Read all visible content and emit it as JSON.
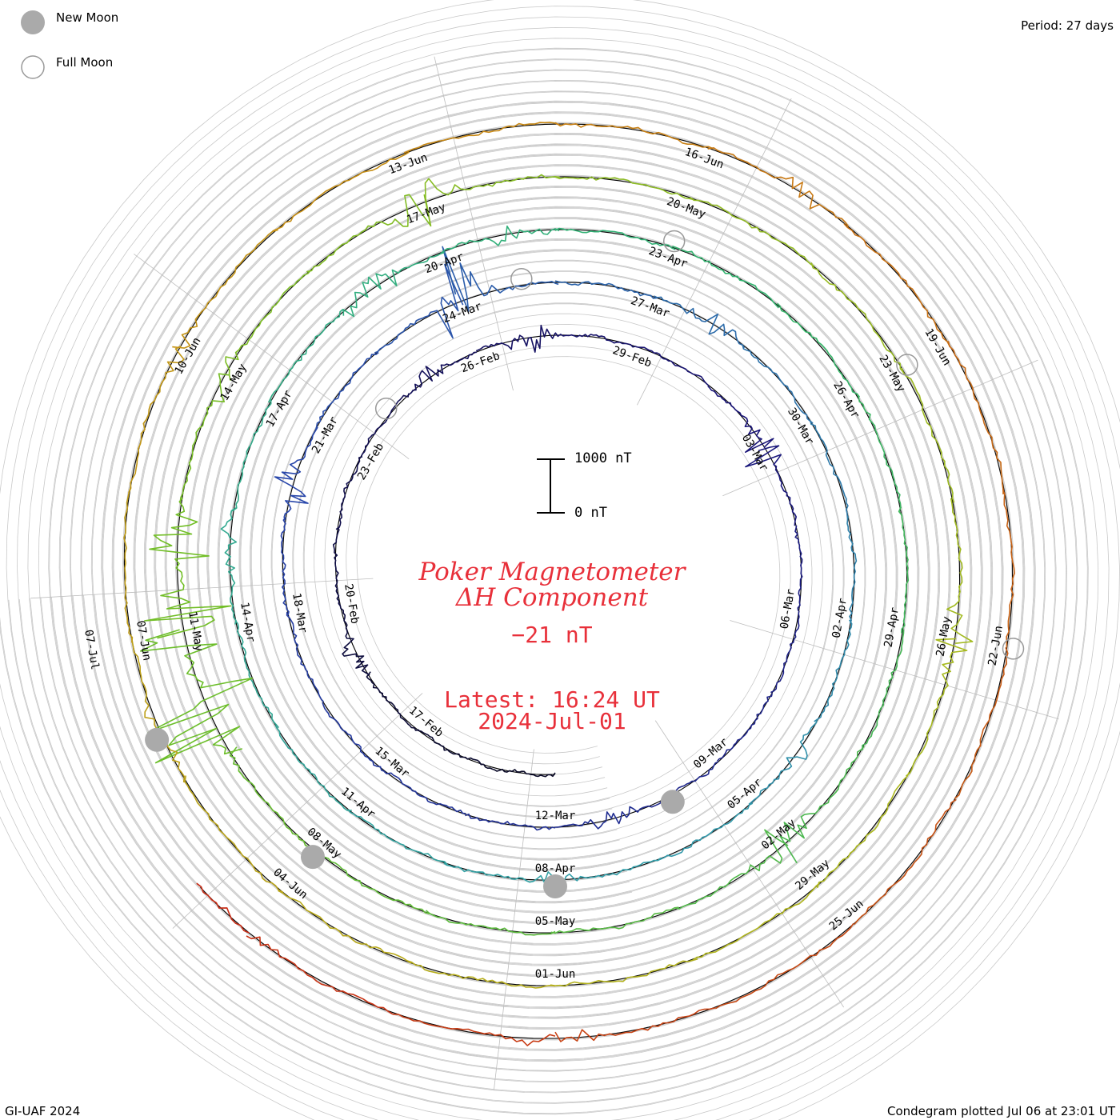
{
  "header": {
    "period": "Period: 27 days"
  },
  "legend": {
    "new_moon": "New Moon",
    "full_moon": "Full Moon"
  },
  "title": {
    "line1": "Poker Magnetometer",
    "line2": "ΔH Component",
    "value": "−21 nT",
    "latest": "Latest: 16:24 UT",
    "date": "2024-Jul-01"
  },
  "scale_bar": {
    "top_label": "1000 nT",
    "bottom_label": "0 nT",
    "value_nT": 1000
  },
  "footer": {
    "left": "GI-UAF 2024",
    "right": "Condegram plotted Jul 06 at 23:01 UT"
  },
  "colors": {
    "title": "#e8303a",
    "grid": "#bbbbbb",
    "moon_new": "#aaaaaa",
    "moon_full": "#999999"
  },
  "chart_data": {
    "type": "condegram",
    "period_days": 27,
    "start_date": "2024-02-14",
    "end_date": "2024-07-01",
    "unit": "nT",
    "date_labels": [
      "17-Feb",
      "20-Feb",
      "23-Feb",
      "26-Feb",
      "29-Feb",
      "03-Mar",
      "06-Mar",
      "09-Mar",
      "12-Mar",
      "15-Mar",
      "18-Mar",
      "21-Mar",
      "24-Mar",
      "27-Mar",
      "30-Mar",
      "02-Apr",
      "05-Apr",
      "08-Apr",
      "11-Apr",
      "14-Apr",
      "17-Apr",
      "20-Apr",
      "23-Apr",
      "26-Apr",
      "29-Apr",
      "02-May",
      "05-May",
      "08-May",
      "11-May",
      "14-May",
      "17-May",
      "20-May",
      "23-May",
      "26-May",
      "29-May",
      "01-Jun",
      "04-Jun",
      "07-Jun",
      "10-Jun",
      "13-Jun",
      "16-Jun",
      "19-Jun",
      "22-Jun",
      "25-Jun",
      "07-Jul"
    ],
    "new_moon_dates": [
      "2024-03-10",
      "2024-04-08",
      "2024-05-08",
      "2024-06-06"
    ],
    "full_moon_dates": [
      "2024-02-24",
      "2024-03-25",
      "2024-04-23",
      "2024-05-23",
      "2024-06-22"
    ],
    "disturbances": [
      {
        "date": "2024-02-19",
        "amplitude_nT": 300
      },
      {
        "date": "2024-02-25",
        "amplitude_nT": 250
      },
      {
        "date": "2024-02-27",
        "amplitude_nT": 350
      },
      {
        "date": "2024-03-03",
        "amplitude_nT": 550
      },
      {
        "date": "2024-03-03",
        "amplitude_nT": 350
      },
      {
        "date": "2024-03-11",
        "amplitude_nT": 250
      },
      {
        "date": "2024-03-20",
        "amplitude_nT": 500
      },
      {
        "date": "2024-03-24",
        "amplitude_nT": 1200
      },
      {
        "date": "2024-03-28",
        "amplitude_nT": 250
      },
      {
        "date": "2024-04-04",
        "amplitude_nT": 300
      },
      {
        "date": "2024-04-08",
        "amplitude_nT": 250
      },
      {
        "date": "2024-04-15",
        "amplitude_nT": 300
      },
      {
        "date": "2024-04-19",
        "amplitude_nT": 600
      },
      {
        "date": "2024-04-21",
        "amplitude_nT": 300
      },
      {
        "date": "2024-05-02",
        "amplitude_nT": 500
      },
      {
        "date": "2024-05-10",
        "amplitude_nT": 2000
      },
      {
        "date": "2024-05-11",
        "amplitude_nT": 1800
      },
      {
        "date": "2024-05-12",
        "amplitude_nT": 800
      },
      {
        "date": "2024-05-14",
        "amplitude_nT": 300
      },
      {
        "date": "2024-05-17",
        "amplitude_nT": 500
      },
      {
        "date": "2024-05-26",
        "amplitude_nT": 400
      },
      {
        "date": "2024-06-06",
        "amplitude_nT": 200
      },
      {
        "date": "2024-06-10",
        "amplitude_nT": 200
      },
      {
        "date": "2024-06-17",
        "amplitude_nT": 250
      },
      {
        "date": "2024-06-28",
        "amplitude_nT": 200
      },
      {
        "date": "2024-07-01",
        "amplitude_nT": 250
      }
    ]
  }
}
